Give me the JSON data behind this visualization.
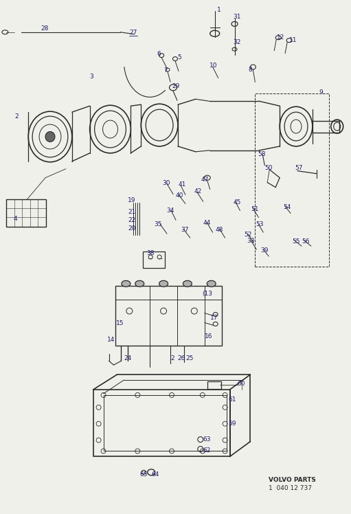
{
  "bg_color": "#f0f0eb",
  "line_color": "#2a2a2a",
  "volvo_parts_text": "VOLVO PARTS",
  "volvo_parts_number": "1  040 12 737",
  "fig_width": 5.11,
  "fig_height": 7.48,
  "dpi": 100
}
